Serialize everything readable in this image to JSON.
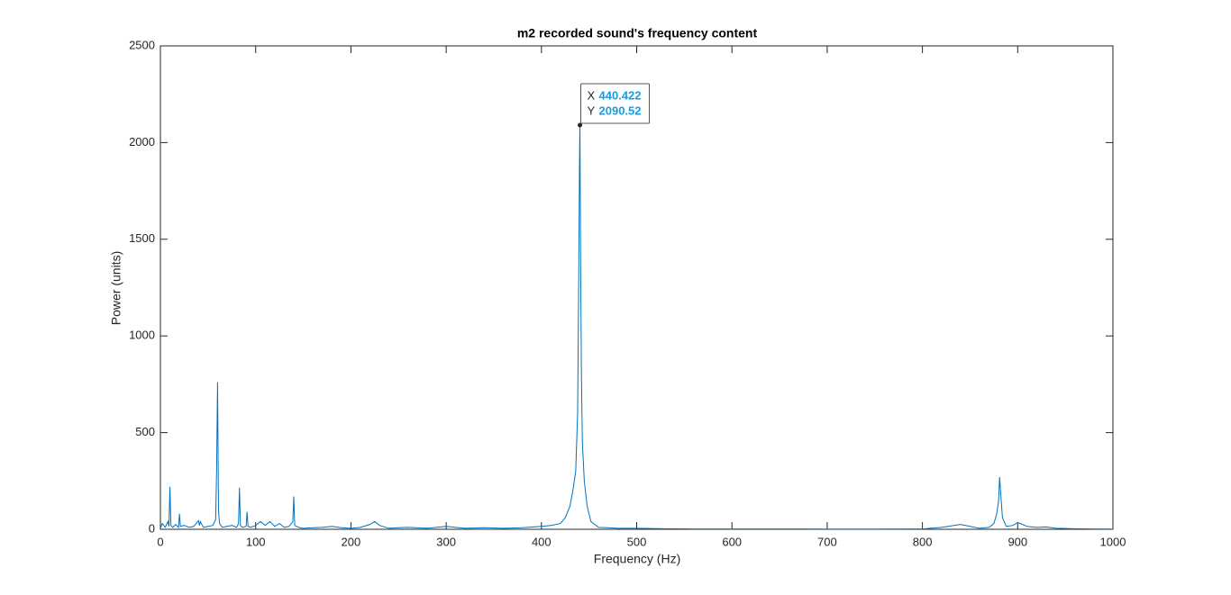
{
  "chart_data": {
    "type": "line",
    "title": "m2 recorded sound's frequency content",
    "xlabel": "Frequency (Hz)",
    "ylabel": "Power (units)",
    "color": "#0072bd",
    "x": [
      0,
      2,
      5,
      8,
      9,
      10,
      11,
      13,
      16,
      19,
      20,
      21,
      25,
      30,
      35,
      40,
      41,
      42,
      45,
      50,
      55,
      58,
      59,
      60,
      61,
      62,
      65,
      70,
      75,
      80,
      82,
      83,
      84,
      86,
      90,
      91,
      92,
      95,
      100,
      105,
      110,
      115,
      120,
      125,
      130,
      135,
      139,
      140,
      141,
      145,
      150,
      160,
      170,
      180,
      190,
      200,
      210,
      220,
      225,
      230,
      240,
      250,
      260,
      280,
      300,
      320,
      340,
      360,
      380,
      400,
      410,
      420,
      425,
      430,
      433,
      436,
      438,
      439,
      440,
      440.422,
      441,
      442,
      443,
      445,
      448,
      452,
      460,
      470,
      480,
      500,
      530,
      560,
      600,
      650,
      700,
      750,
      800,
      820,
      840,
      850,
      860,
      870,
      875,
      878,
      880,
      881,
      882,
      884,
      888,
      895,
      900,
      905,
      910,
      920,
      930,
      940,
      960,
      980,
      1000
    ],
    "values": [
      5,
      30,
      10,
      40,
      15,
      220,
      20,
      10,
      25,
      10,
      80,
      15,
      20,
      10,
      15,
      45,
      20,
      40,
      10,
      15,
      20,
      50,
      300,
      760,
      100,
      30,
      10,
      15,
      20,
      10,
      30,
      215,
      20,
      10,
      15,
      90,
      15,
      10,
      20,
      40,
      20,
      40,
      15,
      30,
      10,
      15,
      40,
      170,
      20,
      10,
      5,
      8,
      10,
      15,
      8,
      5,
      10,
      25,
      40,
      20,
      5,
      8,
      10,
      5,
      15,
      5,
      8,
      5,
      8,
      15,
      20,
      30,
      60,
      120,
      200,
      300,
      600,
      1200,
      1900,
      2090.52,
      1500,
      800,
      450,
      250,
      120,
      40,
      10,
      8,
      5,
      5,
      3,
      2,
      2,
      2,
      1,
      1,
      2,
      10,
      25,
      15,
      5,
      10,
      30,
      80,
      150,
      270,
      200,
      60,
      15,
      20,
      35,
      25,
      15,
      10,
      12,
      5,
      3,
      2,
      1
    ],
    "xlim": [
      0,
      1000
    ],
    "xticks": [
      0,
      100,
      200,
      300,
      400,
      500,
      600,
      700,
      800,
      900,
      1000
    ],
    "ylim": [
      0,
      2500
    ],
    "yticks": [
      0,
      500,
      1000,
      1500,
      2000,
      2500
    ],
    "datatip": {
      "x_label": "X",
      "x": 440.422,
      "y_label": "Y",
      "y": 2090.52
    }
  }
}
